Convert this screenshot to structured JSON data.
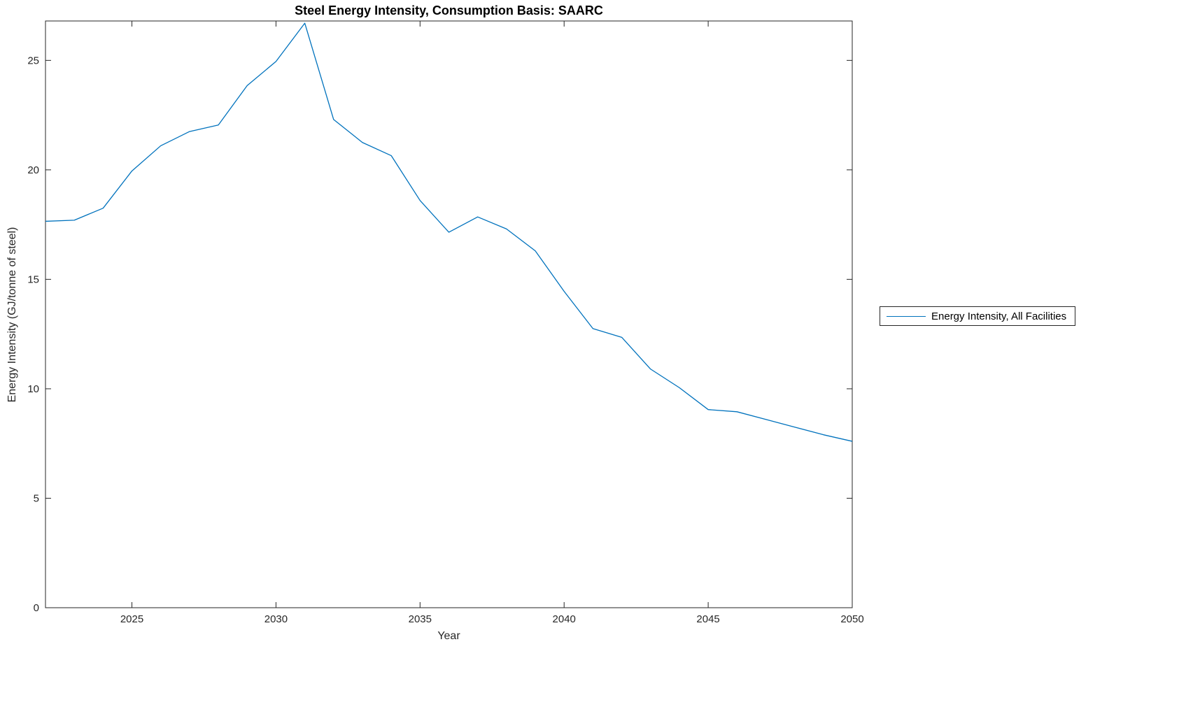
{
  "chart_data": {
    "type": "line",
    "title": "Steel Energy Intensity, Consumption Basis: SAARC",
    "xlabel": "Year",
    "ylabel": "Energy Intensity (GJ/tonne of steel)",
    "xlim": [
      2022,
      2050
    ],
    "ylim": [
      0,
      26.8
    ],
    "xticks": [
      2025,
      2030,
      2035,
      2040,
      2045,
      2050
    ],
    "yticks": [
      0,
      5,
      10,
      15,
      20,
      25
    ],
    "grid": false,
    "legend_position": "right-outside",
    "axis_color": "#262626",
    "series": [
      {
        "name": "Energy Intensity, All Facilities",
        "color": "#0072BD",
        "x": [
          2022,
          2023,
          2024,
          2025,
          2026,
          2027,
          2028,
          2029,
          2030,
          2031,
          2032,
          2033,
          2034,
          2035,
          2036,
          2037,
          2038,
          2039,
          2040,
          2041,
          2042,
          2043,
          2044,
          2045,
          2046,
          2047,
          2048,
          2049,
          2050
        ],
        "y": [
          17.65,
          17.7,
          18.25,
          19.95,
          21.1,
          21.75,
          22.05,
          23.85,
          24.95,
          26.7,
          22.3,
          21.25,
          20.65,
          18.6,
          17.15,
          17.85,
          17.3,
          16.3,
          14.45,
          12.75,
          12.35,
          10.9,
          10.05,
          9.05,
          8.95,
          8.6,
          8.25,
          7.9,
          7.6
        ]
      }
    ]
  }
}
